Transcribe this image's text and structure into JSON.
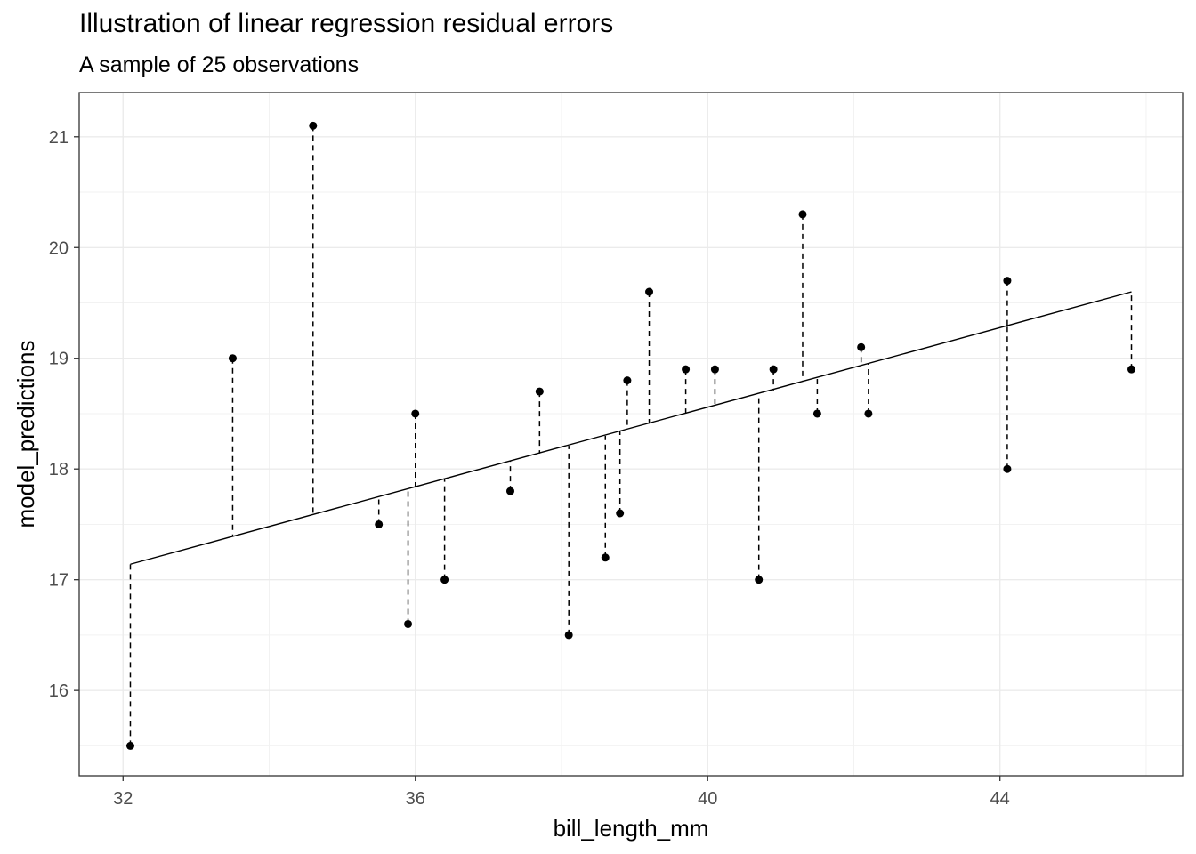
{
  "chart_data": {
    "type": "scatter",
    "title": "Illustration of linear regression residual errors",
    "subtitle": "A sample of 25 observations",
    "xlabel": "bill_length_mm",
    "ylabel": "model_predictions",
    "xlim": [
      31.4,
      46.5
    ],
    "ylim": [
      15.23,
      21.4
    ],
    "x_ticks": [
      32,
      36,
      40,
      44
    ],
    "y_ticks": [
      16,
      17,
      18,
      19,
      20,
      21
    ],
    "grid": true,
    "regression_line": {
      "x": [
        32.1,
        45.8
      ],
      "y": [
        17.14,
        19.6
      ]
    },
    "points": [
      {
        "x": 32.1,
        "y": 15.5,
        "fitted": 17.14
      },
      {
        "x": 33.5,
        "y": 19.0,
        "fitted": 17.39
      },
      {
        "x": 34.6,
        "y": 21.1,
        "fitted": 17.59
      },
      {
        "x": 35.5,
        "y": 17.5,
        "fitted": 17.75
      },
      {
        "x": 35.9,
        "y": 16.6,
        "fitted": 17.82
      },
      {
        "x": 36.0,
        "y": 18.5,
        "fitted": 17.84
      },
      {
        "x": 36.4,
        "y": 17.0,
        "fitted": 17.91
      },
      {
        "x": 37.3,
        "y": 17.8,
        "fitted": 18.07
      },
      {
        "x": 37.7,
        "y": 18.7,
        "fitted": 18.14
      },
      {
        "x": 38.1,
        "y": 16.5,
        "fitted": 18.21
      },
      {
        "x": 38.6,
        "y": 17.2,
        "fitted": 18.3
      },
      {
        "x": 38.8,
        "y": 17.6,
        "fitted": 18.34
      },
      {
        "x": 38.9,
        "y": 18.8,
        "fitted": 18.36
      },
      {
        "x": 39.2,
        "y": 19.6,
        "fitted": 18.41
      },
      {
        "x": 39.7,
        "y": 18.9,
        "fitted": 18.5
      },
      {
        "x": 40.1,
        "y": 18.9,
        "fitted": 18.57
      },
      {
        "x": 40.7,
        "y": 17.0,
        "fitted": 18.68
      },
      {
        "x": 40.9,
        "y": 18.9,
        "fitted": 18.71
      },
      {
        "x": 41.3,
        "y": 20.3,
        "fitted": 18.79
      },
      {
        "x": 41.5,
        "y": 18.5,
        "fitted": 18.82
      },
      {
        "x": 42.1,
        "y": 19.1,
        "fitted": 18.93
      },
      {
        "x": 42.2,
        "y": 18.5,
        "fitted": 18.95
      },
      {
        "x": 44.1,
        "y": 19.7,
        "fitted": 19.29
      },
      {
        "x": 44.1,
        "y": 18.0,
        "fitted": 19.29
      },
      {
        "x": 45.8,
        "y": 18.9,
        "fitted": 19.6
      }
    ]
  }
}
